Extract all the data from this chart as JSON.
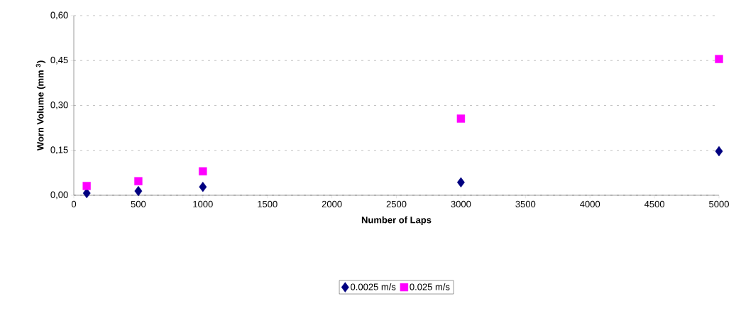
{
  "chart_data": {
    "type": "scatter",
    "xlabel": "Number of Laps",
    "ylabel": "Worn Volume (mm $^{3}$)",
    "series": [
      {
        "name": "0.0025 m/s",
        "color": "#000080",
        "marker": "diamond",
        "x": [
          100,
          500,
          1000,
          3000,
          5000
        ],
        "values": [
          0.007,
          0.014,
          0.028,
          0.043,
          0.147
        ]
      },
      {
        "name": "0.025 m/s",
        "color": "#ff00ff",
        "marker": "square",
        "x": [
          100,
          500,
          1000,
          3000,
          5000
        ],
        "values": [
          0.031,
          0.047,
          0.08,
          0.256,
          0.455
        ]
      }
    ],
    "xlim": [
      0,
      5000
    ],
    "xticks": [
      0,
      500,
      1000,
      1500,
      2000,
      2500,
      3000,
      3500,
      4000,
      4500,
      5000
    ],
    "ylim": [
      0,
      0.6
    ],
    "yticks": [
      {
        "value": 0,
        "label": "0,00"
      },
      {
        "value": 0.15,
        "label": "0,15"
      },
      {
        "value": 0.3,
        "label": "0,30"
      },
      {
        "value": 0.45,
        "label": "0,45"
      },
      {
        "value": 0.6,
        "label": "0,60"
      }
    ],
    "grid": "y",
    "legend": "bottom"
  }
}
